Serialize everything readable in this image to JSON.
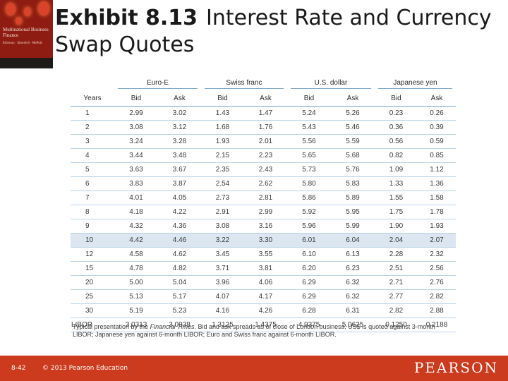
{
  "cover": {
    "title": "Multinational Business Finance",
    "author": "Eiteman · Stonehill · Moffett"
  },
  "slide": {
    "exhibit_number": "Exhibit 8.13",
    "title_rest": "Interest Rate and Currency Swap Quotes"
  },
  "table": {
    "groups": [
      "Euro-E",
      "Swiss franc",
      "U.S. dollar",
      "Japanese yen"
    ],
    "columns": [
      "Years",
      "Bid",
      "Ask",
      "Bid",
      "Ask",
      "Bid",
      "Ask",
      "Bid",
      "Ask"
    ],
    "rows": [
      [
        "1",
        "2.99",
        "3.02",
        "1.43",
        "1.47",
        "5.24",
        "5.26",
        "0.23",
        "0.26"
      ],
      [
        "2",
        "3.08",
        "3.12",
        "1.68",
        "1.76",
        "5.43",
        "5.46",
        "0.36",
        "0.39"
      ],
      [
        "3",
        "3.24",
        "3.28",
        "1.93",
        "2.01",
        "5.56",
        "5.59",
        "0.56",
        "0.59"
      ],
      [
        "4",
        "3.44",
        "3.48",
        "2.15",
        "2.23",
        "5.65",
        "5.68",
        "0.82",
        "0.85"
      ],
      [
        "5",
        "3.63",
        "3.67",
        "2.35",
        "2.43",
        "5.73",
        "5.76",
        "1.09",
        "1.12"
      ],
      [
        "6",
        "3.83",
        "3.87",
        "2.54",
        "2.62",
        "5.80",
        "5.83",
        "1.33",
        "1.36"
      ],
      [
        "7",
        "4.01",
        "4.05",
        "2.73",
        "2.81",
        "5.86",
        "5.89",
        "1.55",
        "1.58"
      ],
      [
        "8",
        "4.18",
        "4.22",
        "2.91",
        "2.99",
        "5.92",
        "5.95",
        "1.75",
        "1.78"
      ],
      [
        "9",
        "4.32",
        "4.36",
        "3.08",
        "3.16",
        "5.96",
        "5.99",
        "1.90",
        "1.93"
      ],
      [
        "10",
        "4.42",
        "4.46",
        "3.22",
        "3.30",
        "6.01",
        "6.04",
        "2.04",
        "2.07"
      ],
      [
        "12",
        "4.58",
        "4.62",
        "3.45",
        "3.55",
        "6.10",
        "6.13",
        "2.28",
        "2.32"
      ],
      [
        "15",
        "4.78",
        "4.82",
        "3.71",
        "3.81",
        "6.20",
        "6.23",
        "2.51",
        "2.56"
      ],
      [
        "20",
        "5.00",
        "5.04",
        "3.96",
        "4.06",
        "6.29",
        "6.32",
        "2.71",
        "2.76"
      ],
      [
        "25",
        "5.13",
        "5.17",
        "4.07",
        "4.17",
        "6.29",
        "6.32",
        "2.77",
        "2.82"
      ],
      [
        "30",
        "5.19",
        "5.23",
        "4.16",
        "4.26",
        "6.28",
        "6.31",
        "2.82",
        "2.88"
      ],
      [
        "LIBOR",
        "3.0313",
        "3.0938",
        "1.3125",
        "1.4375",
        "4.9375",
        "5.0625",
        "0.1250",
        "0.2188"
      ]
    ],
    "highlight_row_index": 9,
    "rule_color": "#7aa6c9",
    "highlight_color": "#dbe6f0"
  },
  "footnote": {
    "prefix": "Typical presentation by the ",
    "source": "Financial Times",
    "suffix": ". Bid and ask spreads as of close of London business. US$ is quoted against 3-month LIBOR; Japanese yen against 6-month LIBOR; Euro and Swiss franc against 6-month LIBOR."
  },
  "footer": {
    "slide_number": "8-42",
    "copyright": "© 2013 Pearson Education",
    "brand": "PEARSON",
    "background": "#cc3b1e"
  }
}
